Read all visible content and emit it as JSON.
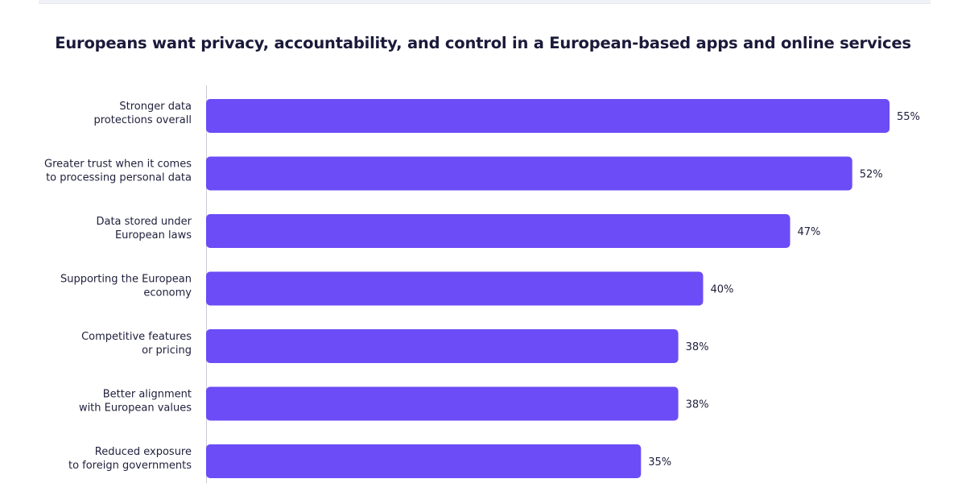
{
  "chart_data": {
    "type": "bar",
    "orientation": "horizontal",
    "title": "Europeans want privacy, accountability, and control in a European-based apps and online services",
    "categories": [
      [
        "Stronger data",
        "protections overall"
      ],
      [
        "Greater trust when it comes",
        "to processing personal data"
      ],
      [
        "Data stored under",
        "European laws"
      ],
      [
        "Supporting the European",
        "economy"
      ],
      [
        "Competitive features",
        "or pricing"
      ],
      [
        "Better alignment",
        "with European values"
      ],
      [
        "Reduced exposure",
        "to foreign governments"
      ]
    ],
    "values": [
      55,
      52,
      47,
      40,
      38,
      38,
      35
    ],
    "value_labels": [
      "55%",
      "52%",
      "47%",
      "40%",
      "38%",
      "38%",
      "35%"
    ],
    "xlim": [
      0,
      55
    ],
    "grid": false,
    "legend": "none",
    "bar_color": "#6b4cf6"
  }
}
